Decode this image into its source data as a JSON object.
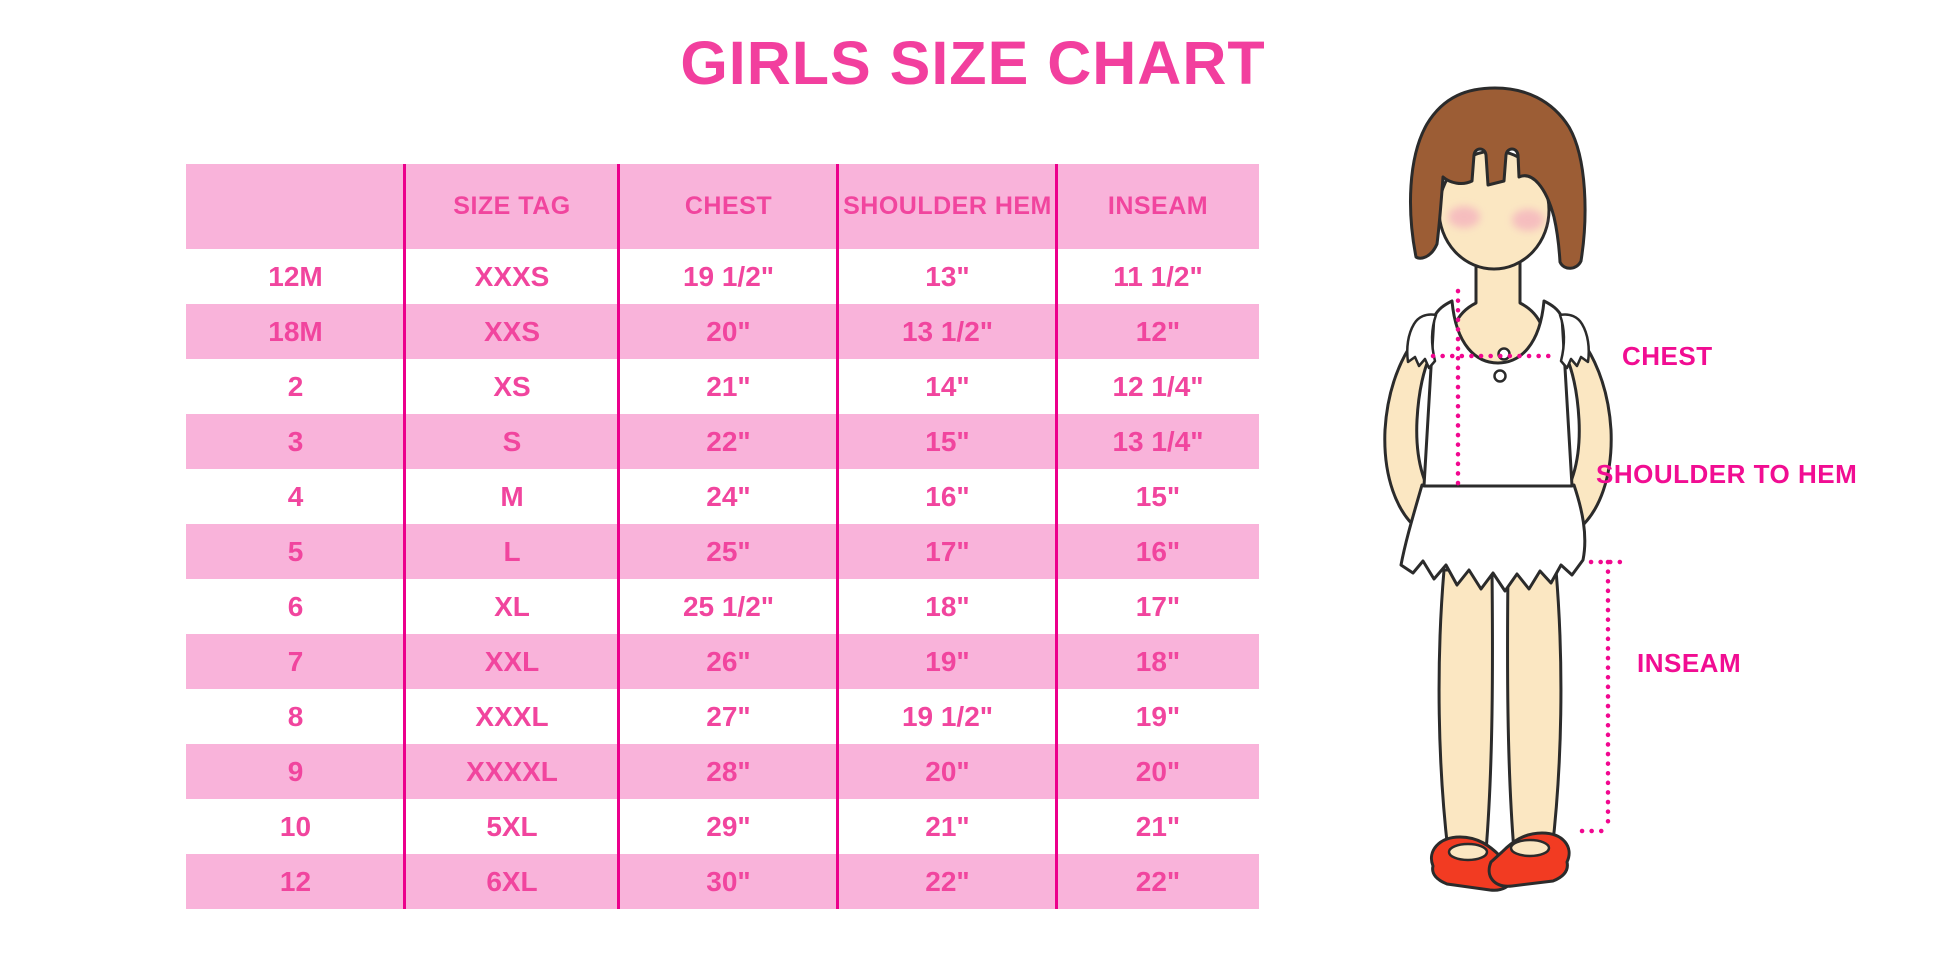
{
  "title": "GIRLS SIZE CHART",
  "figure": {
    "illustration": "girl-with-measurement-lines",
    "labels": {
      "chest": "CHEST",
      "shoulder_to_hem": "SHOULDER TO HEM",
      "inseam": "INSEAM"
    }
  },
  "colors": {
    "title_pink": "#F23F9E",
    "row_pink": "#F9B3DA",
    "table_text_pink": "#F1459E",
    "separator_magenta": "#EC008C",
    "label_magenta": "#F10D92",
    "dotted_line_magenta": "#F1078F",
    "hair_brown": "#9C5D35",
    "skin_tone": "#FBE7C2",
    "shoe_red": "#F23B22",
    "outline_dark": "#2B2B2B",
    "background": "#FFFFFF"
  },
  "chart_data": {
    "type": "table",
    "title": "GIRLS SIZE CHART",
    "columns": [
      "",
      "SIZE TAG",
      "CHEST",
      "SHOULDER HEM",
      "INSEAM"
    ],
    "rows": [
      [
        "12M",
        "XXXS",
        "19 1/2\"",
        "13\"",
        "11 1/2\""
      ],
      [
        "18M",
        "XXS",
        "20\"",
        "13 1/2\"",
        "12\""
      ],
      [
        "2",
        "XS",
        "21\"",
        "14\"",
        "12 1/4\""
      ],
      [
        "3",
        "S",
        "22\"",
        "15\"",
        "13 1/4\""
      ],
      [
        "4",
        "M",
        "24\"",
        "16\"",
        "15\""
      ],
      [
        "5",
        "L",
        "25\"",
        "17\"",
        "16\""
      ],
      [
        "6",
        "XL",
        "25 1/2\"",
        "18\"",
        "17\""
      ],
      [
        "7",
        "XXL",
        "26\"",
        "19\"",
        "18\""
      ],
      [
        "8",
        "XXXL",
        "27\"",
        "19 1/2\"",
        "19\""
      ],
      [
        "9",
        "XXXXL",
        "28\"",
        "20\"",
        "20\""
      ],
      [
        "10",
        "5XL",
        "29\"",
        "21\"",
        "21\""
      ],
      [
        "12",
        "6XL",
        "30\"",
        "22\"",
        "22\""
      ]
    ]
  }
}
